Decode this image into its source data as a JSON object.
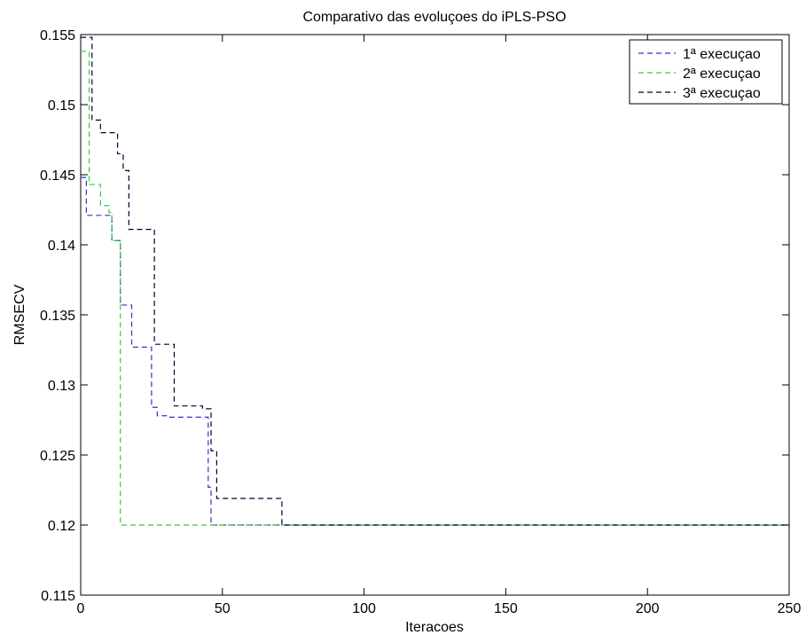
{
  "chart_data": {
    "type": "line",
    "title": "Comparativo das evoluçoes do iPLS-PSO",
    "xlabel": "Iteracoes",
    "ylabel": "RMSECV",
    "xlim": [
      0,
      250
    ],
    "ylim": [
      0.115,
      0.155
    ],
    "xticks": [
      0,
      50,
      100,
      150,
      200,
      250
    ],
    "xtick_labels": [
      "0",
      "50",
      "100",
      "150",
      "200",
      "250"
    ],
    "yticks": [
      0.115,
      0.12,
      0.125,
      0.13,
      0.135,
      0.14,
      0.145,
      0.15,
      0.155
    ],
    "ytick_labels": [
      "0.115",
      "0.12",
      "0.125",
      "0.13",
      "0.135",
      "0.14",
      "0.145",
      "0.15",
      "0.155"
    ],
    "grid": false,
    "legend_position": "top-right",
    "series": [
      {
        "name": "1ª execuçao",
        "color": "#3333cc",
        "dash": "dashed",
        "x": [
          0,
          2,
          2,
          11,
          11,
          14,
          14,
          18,
          18,
          25,
          25,
          27,
          27,
          31,
          31,
          45,
          45,
          46,
          46,
          250
        ],
        "y": [
          0.1448,
          0.1448,
          0.1421,
          0.1421,
          0.1403,
          0.1403,
          0.1357,
          0.1357,
          0.1327,
          0.1327,
          0.1284,
          0.1284,
          0.1278,
          0.1278,
          0.1277,
          0.1277,
          0.1227,
          0.1227,
          0.12,
          0.12
        ]
      },
      {
        "name": "2ª execuçao",
        "color": "#33cc33",
        "dash": "dashed",
        "x": [
          0,
          3,
          3,
          7,
          7,
          10,
          10,
          11,
          11,
          14,
          14,
          250
        ],
        "y": [
          0.1538,
          0.1538,
          0.1443,
          0.1443,
          0.1428,
          0.1428,
          0.1423,
          0.1423,
          0.1403,
          0.1403,
          0.12,
          0.12
        ]
      },
      {
        "name": "3ª execuçao",
        "color": "#000033",
        "dash": "dashed",
        "x": [
          0,
          4,
          4,
          7,
          7,
          13,
          13,
          15,
          15,
          17,
          17,
          26,
          26,
          33,
          33,
          43,
          43,
          46,
          46,
          48,
          48,
          71,
          71,
          250
        ],
        "y": [
          0.1548,
          0.1548,
          0.1489,
          0.1489,
          0.148,
          0.148,
          0.1465,
          0.1465,
          0.1453,
          0.1453,
          0.1411,
          0.1411,
          0.1329,
          0.1329,
          0.1285,
          0.1285,
          0.1283,
          0.1283,
          0.1253,
          0.1253,
          0.1219,
          0.1219,
          0.12,
          0.12
        ]
      }
    ]
  }
}
